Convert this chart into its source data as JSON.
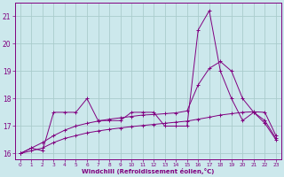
{
  "xlabel": "Windchill (Refroidissement éolien,°C)",
  "background_color": "#cce8ec",
  "grid_color": "#aacccc",
  "line_color": "#800080",
  "x_data": [
    0,
    1,
    2,
    3,
    4,
    5,
    6,
    7,
    8,
    9,
    10,
    11,
    12,
    13,
    14,
    15,
    16,
    17,
    18,
    19,
    20,
    21,
    22,
    23
  ],
  "y_main": [
    16.0,
    16.2,
    16.1,
    17.5,
    17.5,
    17.5,
    18.0,
    17.2,
    17.2,
    17.2,
    17.5,
    17.5,
    17.5,
    17.0,
    17.0,
    17.0,
    20.5,
    21.2,
    19.0,
    18.0,
    17.2,
    17.5,
    17.1,
    16.5
  ],
  "y_line2": [
    16.0,
    16.1,
    16.2,
    16.4,
    16.55,
    16.65,
    16.75,
    16.82,
    16.88,
    16.93,
    16.98,
    17.02,
    17.06,
    17.1,
    17.14,
    17.18,
    17.25,
    17.32,
    17.4,
    17.45,
    17.5,
    17.52,
    17.5,
    16.65
  ],
  "y_line3": [
    16.0,
    16.2,
    16.4,
    16.65,
    16.85,
    17.0,
    17.1,
    17.18,
    17.25,
    17.3,
    17.35,
    17.4,
    17.42,
    17.45,
    17.48,
    17.55,
    18.5,
    19.1,
    19.35,
    19.0,
    18.0,
    17.5,
    17.2,
    16.55
  ],
  "ylim": [
    15.8,
    21.5
  ],
  "yticks": [
    16,
    17,
    18,
    19,
    20,
    21
  ],
  "xlim": [
    -0.5,
    23.5
  ],
  "xticks": [
    0,
    1,
    2,
    3,
    4,
    5,
    6,
    7,
    8,
    9,
    10,
    11,
    12,
    13,
    14,
    15,
    16,
    17,
    18,
    19,
    20,
    21,
    22,
    23
  ]
}
